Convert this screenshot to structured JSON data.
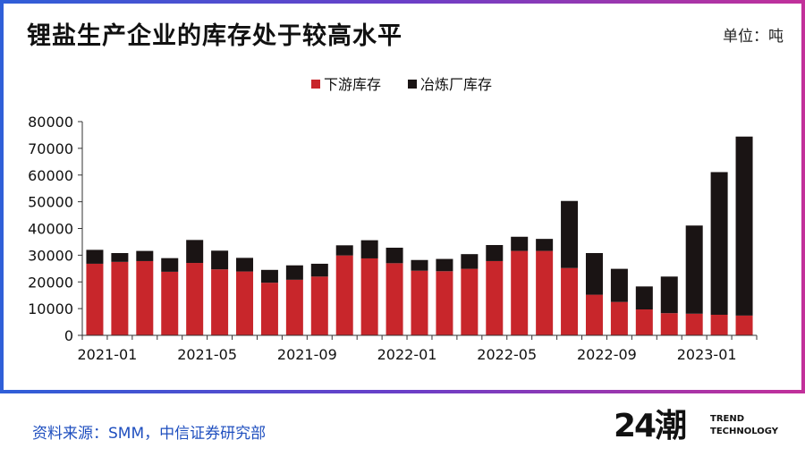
{
  "header": {
    "title": "锂盐生产企业的库存处于较高水平",
    "unit": "单位：吨"
  },
  "footer": {
    "source": "资料来源：SMM，中信证券研究部",
    "brand_logo": "24潮",
    "brand_line1": "TREND",
    "brand_line2": "TECHNOLOGY"
  },
  "colors": {
    "downstream": "#c8262b",
    "smelter": "#1a1414",
    "axis": "#333333",
    "frame_left": "#2f5fd8",
    "frame_right": "#c2309a",
    "source_text": "#1f4fbf"
  },
  "chart_data": {
    "type": "bar",
    "stacked": true,
    "title": "锂盐生产企业的库存处于较高水平",
    "ylabel": "单位：吨",
    "ylim": [
      0,
      80000
    ],
    "yticks": [
      0,
      10000,
      20000,
      30000,
      40000,
      50000,
      60000,
      70000,
      80000
    ],
    "legend_position": "top-center",
    "grid": false,
    "categories": [
      "2021-01",
      "2021-02",
      "2021-03",
      "2021-04",
      "2021-05",
      "2021-06",
      "2021-07",
      "2021-08",
      "2021-09",
      "2021-10",
      "2021-11",
      "2021-12",
      "2022-01",
      "2022-02",
      "2022-03",
      "2022-04",
      "2022-05",
      "2022-06",
      "2022-07",
      "2022-08",
      "2022-09",
      "2022-10",
      "2022-11",
      "2022-12",
      "2023-01",
      "2023-02",
      "2023-03"
    ],
    "xtick_labels": [
      "2021-01",
      "2021-05",
      "2021-09",
      "2022-01",
      "2022-05",
      "2022-09",
      "2023-01"
    ],
    "xtick_indices": [
      1,
      5,
      9,
      13,
      17,
      21,
      25
    ],
    "series": [
      {
        "name": "下游库存",
        "values": [
          26800,
          27500,
          27800,
          23800,
          27100,
          24700,
          23900,
          19700,
          20800,
          22000,
          29900,
          28800,
          27000,
          24200,
          24000,
          24900,
          27800,
          31600,
          31600,
          25200,
          15200,
          12500,
          9700,
          8300,
          8100,
          7700,
          7400
        ]
      },
      {
        "name": "冶炼厂库存",
        "values": [
          5200,
          3300,
          3800,
          5100,
          8600,
          7000,
          5100,
          4800,
          5400,
          4800,
          3800,
          6800,
          5800,
          4000,
          4600,
          5500,
          6000,
          5300,
          4500,
          25100,
          15600,
          12400,
          8600,
          13700,
          33000,
          53400,
          67000
        ]
      }
    ]
  }
}
